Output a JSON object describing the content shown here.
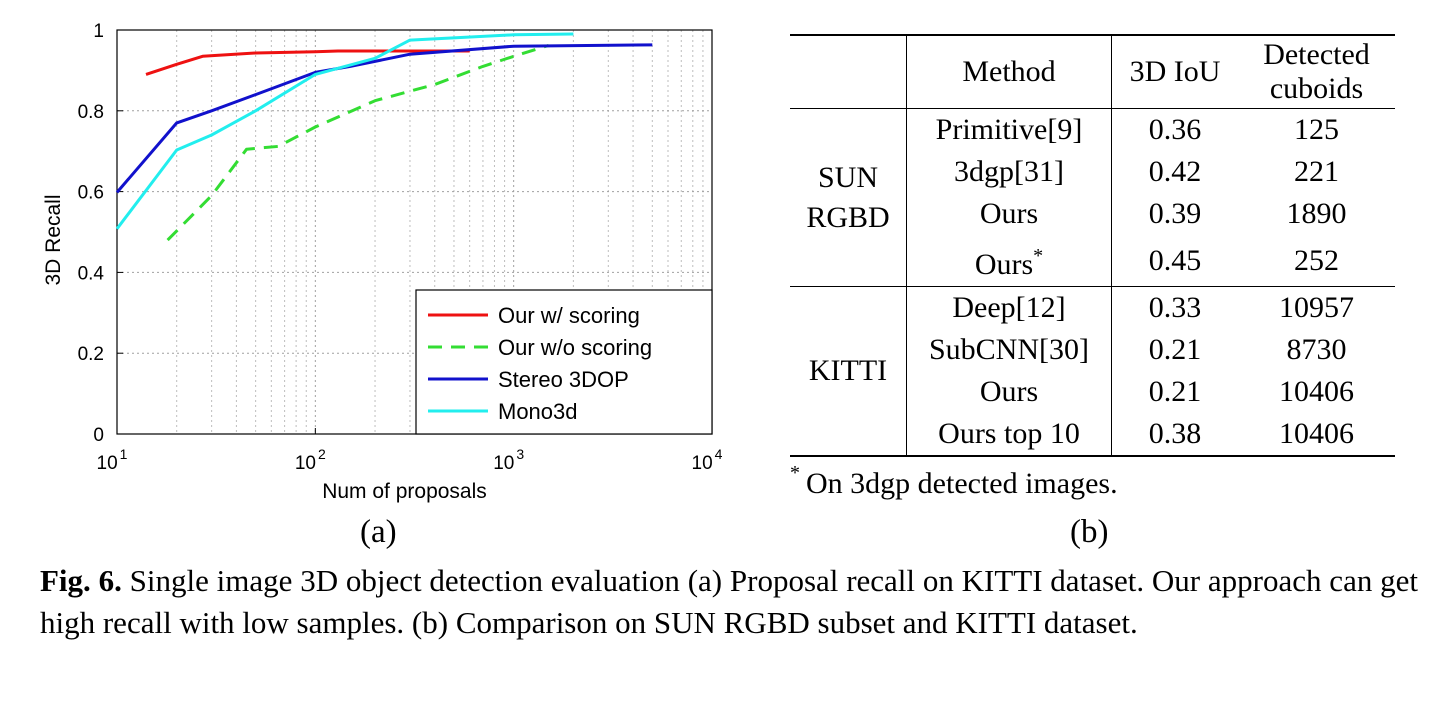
{
  "chart_data": {
    "type": "line",
    "xscale": "log",
    "xlabel": "Num of proposals",
    "ylabel": "3D Recall",
    "xlim": [
      10,
      10000
    ],
    "ylim": [
      0,
      1
    ],
    "x_ticks": [
      {
        "value": 10,
        "base": "10",
        "exp": "1"
      },
      {
        "value": 100,
        "base": "10",
        "exp": "2"
      },
      {
        "value": 1000,
        "base": "10",
        "exp": "3"
      },
      {
        "value": 10000,
        "base": "10",
        "exp": "4"
      }
    ],
    "y_ticks": [
      {
        "value": 0,
        "label": "0"
      },
      {
        "value": 0.2,
        "label": "0.2"
      },
      {
        "value": 0.4,
        "label": "0.4"
      },
      {
        "value": 0.6,
        "label": "0.6"
      },
      {
        "value": 0.8,
        "label": "0.8"
      },
      {
        "value": 1,
        "label": "1"
      }
    ],
    "grid": true,
    "legend_position": "bottom-right",
    "series": [
      {
        "name": "Our w/ scoring",
        "color": "#ee1111",
        "dash": "solid",
        "points": [
          [
            14,
            0.89
          ],
          [
            20,
            0.915
          ],
          [
            27,
            0.935
          ],
          [
            50,
            0.943
          ],
          [
            100,
            0.946
          ],
          [
            130,
            0.948
          ],
          [
            300,
            0.948
          ],
          [
            600,
            0.948
          ]
        ]
      },
      {
        "name": "Our w/o scoring",
        "color": "#33dd33",
        "dash": "dashed",
        "points": [
          [
            18,
            0.48
          ],
          [
            30,
            0.59
          ],
          [
            45,
            0.705
          ],
          [
            65,
            0.712
          ],
          [
            100,
            0.76
          ],
          [
            200,
            0.825
          ],
          [
            400,
            0.865
          ],
          [
            700,
            0.91
          ],
          [
            1000,
            0.935
          ],
          [
            1500,
            0.962
          ]
        ]
      },
      {
        "name": "Stereo 3DOP",
        "color": "#1111cc",
        "dash": "solid",
        "points": [
          [
            10,
            0.598
          ],
          [
            20,
            0.77
          ],
          [
            30,
            0.8
          ],
          [
            50,
            0.84
          ],
          [
            100,
            0.895
          ],
          [
            150,
            0.91
          ],
          [
            300,
            0.94
          ],
          [
            1000,
            0.96
          ],
          [
            5000,
            0.963
          ]
        ]
      },
      {
        "name": "Mono3d",
        "color": "#22eeee",
        "dash": "solid",
        "points": [
          [
            10,
            0.508
          ],
          [
            20,
            0.703
          ],
          [
            30,
            0.74
          ],
          [
            50,
            0.8
          ],
          [
            100,
            0.89
          ],
          [
            200,
            0.93
          ],
          [
            300,
            0.975
          ],
          [
            1000,
            0.988
          ],
          [
            2000,
            0.99
          ]
        ]
      }
    ]
  },
  "panel_a_label": "(a)",
  "panel_b_label": "(b)",
  "table": {
    "headers": {
      "method": "Method",
      "iou": "3D IoU",
      "detected_line1": "Detected",
      "detected_line2": "cuboids"
    },
    "groups": [
      {
        "dataset_line1": "SUN",
        "dataset_line2": "RGBD",
        "rows": [
          {
            "method": "Primitive[9]",
            "iou": "0.36",
            "detected": "125"
          },
          {
            "method": "3dgp[31]",
            "iou": "0.42",
            "detected": "221"
          },
          {
            "method": "Ours",
            "iou": "0.39",
            "detected": "1890"
          },
          {
            "method": "Ours",
            "mark": "*",
            "iou": "0.45",
            "detected": "252"
          }
        ]
      },
      {
        "dataset_line1": "KITTI",
        "rows": [
          {
            "method": "Deep[12]",
            "iou": "0.33",
            "detected": "10957"
          },
          {
            "method": "SubCNN[30]",
            "iou": "0.21",
            "detected": "8730"
          },
          {
            "method": "Ours",
            "iou": "0.21",
            "detected": "10406"
          },
          {
            "method": "Ours top 10",
            "iou": "0.38",
            "detected": "10406"
          }
        ]
      }
    ]
  },
  "footnote": {
    "mark": "*",
    "text": "On 3dgp detected images."
  },
  "caption": {
    "label": "Fig. 6.",
    "text": "Single image 3D object detection evaluation (a) Proposal recall on KITTI dataset. Our approach can get high recall with low samples. (b) Comparison on SUN RGBD subset and KITTI dataset."
  }
}
